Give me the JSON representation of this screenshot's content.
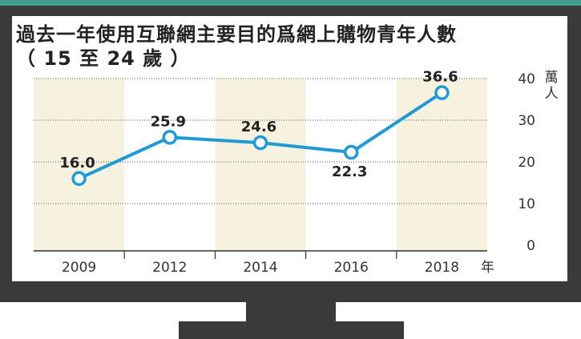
{
  "chart_data": {
    "type": "line",
    "title": "過去一年使用互聯網主要目的爲網上購物青年人數",
    "subtitle": "（ 15 至 24 歲 ）",
    "categories": [
      "2009",
      "2012",
      "2014",
      "2016",
      "2018"
    ],
    "series": [
      {
        "values": [
          16.0,
          25.9,
          24.6,
          22.3,
          36.6
        ]
      }
    ],
    "value_labels": [
      "16.0",
      "25.9",
      "24.6",
      "22.3",
      "36.6"
    ],
    "ylim": [
      0,
      40
    ],
    "yticks": [
      "0",
      "10",
      "20",
      "30",
      "40"
    ],
    "ylabel": "萬人",
    "xlabel": "年",
    "grid": true,
    "colors": {
      "line": "#1e9ad6",
      "point_fill": "#ffffff",
      "band": "#f7f2e0",
      "frame": "#3a3a3a",
      "accent_strip": "#3f9e8c"
    }
  }
}
